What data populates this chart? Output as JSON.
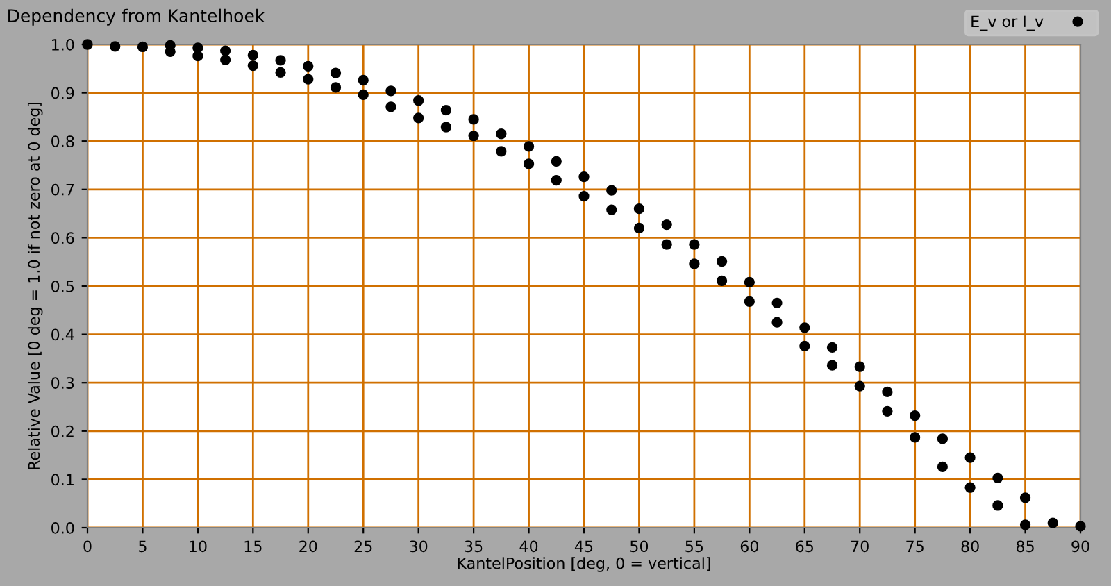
{
  "chart_data": {
    "type": "scatter",
    "title": "Dependency from Kantelhoek",
    "xlabel": "KantelPosition [deg, 0 = vertical]",
    "ylabel": "Relative Value [0 deg = 1.0 if not zero at 0 deg]",
    "series": [
      {
        "name": "E_v or I_v",
        "color": "#000000",
        "x": [
          0,
          2.5,
          5,
          7.5,
          7.5,
          10,
          10,
          12.5,
          12.5,
          15,
          15,
          17.5,
          17.5,
          20,
          20,
          22.5,
          22.5,
          25,
          25,
          27.5,
          27.5,
          30,
          30,
          32.5,
          32.5,
          35,
          35,
          37.5,
          37.5,
          40,
          40,
          42.5,
          42.5,
          45,
          45,
          47.5,
          47.5,
          50,
          50,
          52.5,
          52.5,
          55,
          55,
          57.5,
          57.5,
          60,
          60,
          62.5,
          62.5,
          65,
          65,
          67.5,
          67.5,
          70,
          70,
          72.5,
          72.5,
          75,
          75,
          77.5,
          77.5,
          80,
          80,
          82.5,
          82.5,
          85,
          85,
          87.5,
          90
        ],
        "values": [
          1.0,
          0.996,
          0.995,
          0.985,
          0.998,
          0.976,
          0.993,
          0.968,
          0.987,
          0.956,
          0.978,
          0.942,
          0.967,
          0.928,
          0.955,
          0.911,
          0.941,
          0.896,
          0.926,
          0.871,
          0.904,
          0.848,
          0.884,
          0.829,
          0.864,
          0.811,
          0.845,
          0.779,
          0.815,
          0.753,
          0.789,
          0.719,
          0.758,
          0.686,
          0.726,
          0.658,
          0.698,
          0.62,
          0.66,
          0.586,
          0.627,
          0.546,
          0.586,
          0.511,
          0.551,
          0.468,
          0.508,
          0.425,
          0.465,
          0.376,
          0.414,
          0.336,
          0.373,
          0.293,
          0.333,
          0.241,
          0.281,
          0.187,
          0.232,
          0.126,
          0.184,
          0.083,
          0.145,
          0.046,
          0.103,
          0.006,
          0.062,
          0.01,
          0.003
        ]
      }
    ],
    "xlim": [
      0,
      90
    ],
    "xticks": [
      0,
      5,
      10,
      15,
      20,
      25,
      30,
      35,
      40,
      45,
      50,
      55,
      60,
      65,
      70,
      75,
      80,
      85,
      90
    ],
    "ylim": [
      0,
      1
    ],
    "yticks": [
      {
        "value": 0,
        "label": "0.0"
      },
      {
        "value": 0.1,
        "label": "0.1"
      },
      {
        "value": 0.2,
        "label": "0.2"
      },
      {
        "value": 0.3,
        "label": "0.3"
      },
      {
        "value": 0.4,
        "label": "0.4"
      },
      {
        "value": 0.5,
        "label": "0.5"
      },
      {
        "value": 0.6,
        "label": "0.6"
      },
      {
        "value": 0.7,
        "label": "0.7"
      },
      {
        "value": 0.8,
        "label": "0.8"
      },
      {
        "value": 0.9,
        "label": "0.9"
      },
      {
        "value": 1,
        "label": "1.0"
      }
    ],
    "grid": true,
    "legend": "top right",
    "marker": "circle"
  }
}
